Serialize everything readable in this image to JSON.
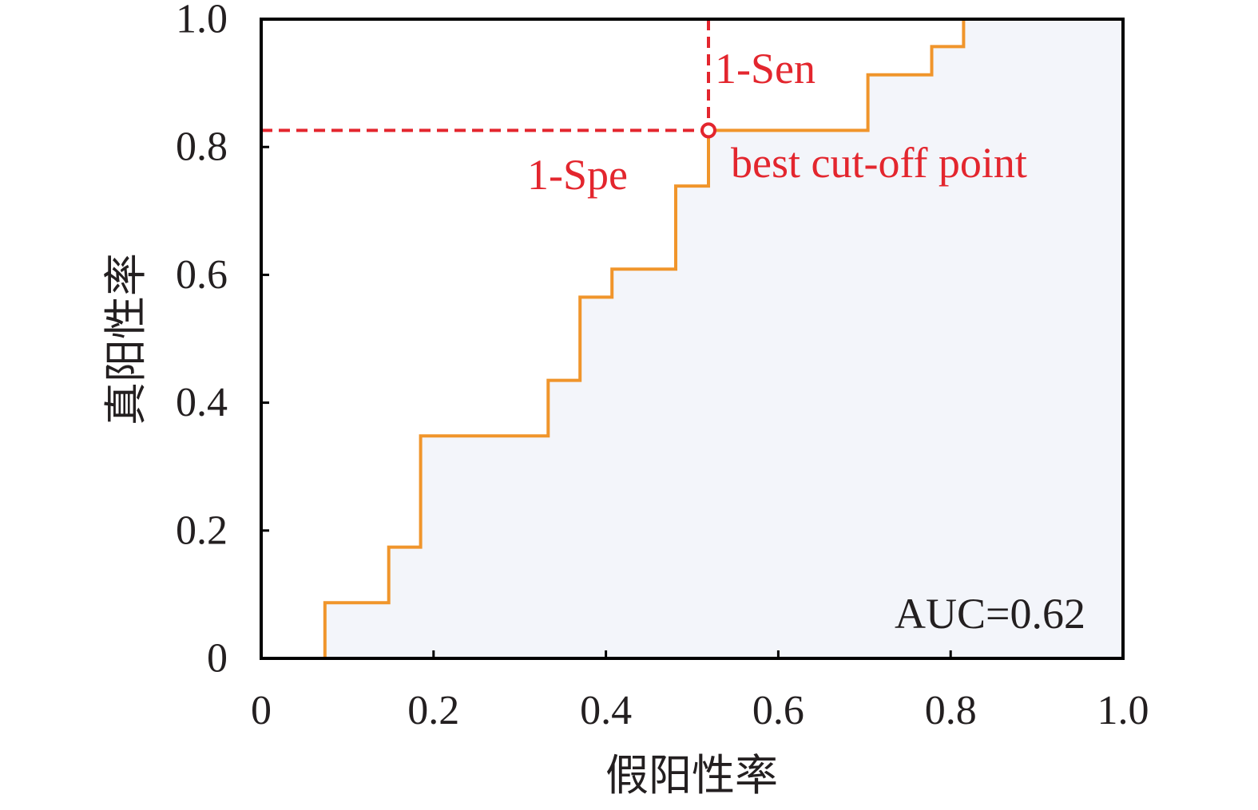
{
  "chart_data": {
    "type": "line",
    "step": true,
    "xlabel": "假阳性率",
    "ylabel": "真阳性率",
    "xlim": [
      0,
      1.0
    ],
    "ylim": [
      0,
      1.0
    ],
    "x_ticks": [
      0,
      0.2,
      0.4,
      0.6,
      0.8,
      1.0
    ],
    "x_tick_labels": [
      "0",
      "0.2",
      "0.4",
      "0.6",
      "0.8",
      "1.0"
    ],
    "y_ticks": [
      0,
      0.2,
      0.4,
      0.6,
      0.8,
      1.0
    ],
    "y_tick_labels": [
      "0",
      "0.2",
      "0.4",
      "0.6",
      "0.8",
      "1.0"
    ],
    "grid": false,
    "series": [
      {
        "x": [
          0.074,
          0.074,
          0.148,
          0.148,
          0.185,
          0.185,
          0.333,
          0.333,
          0.37,
          0.37,
          0.407,
          0.407,
          0.481,
          0.481,
          0.519,
          0.519,
          0.704,
          0.704,
          0.778,
          0.778,
          0.815,
          0.815,
          1.0
        ],
        "y": [
          0,
          0.087,
          0.087,
          0.174,
          0.174,
          0.348,
          0.348,
          0.435,
          0.435,
          0.565,
          0.565,
          0.609,
          0.609,
          0.739,
          0.739,
          0.826,
          0.826,
          0.913,
          0.913,
          0.957,
          0.957,
          1.0,
          1.0
        ],
        "color": "#f0952b",
        "fill_color": "#f3f5fa"
      }
    ],
    "best_cutoff": {
      "x": 0.519,
      "y": 0.826,
      "label": "best cut-off point",
      "color": "#e3262e"
    },
    "annotations": {
      "sensitivity_label": "1-Sen",
      "specificity_label": "1-Spe",
      "auc_label": "AUC=0.62"
    }
  }
}
